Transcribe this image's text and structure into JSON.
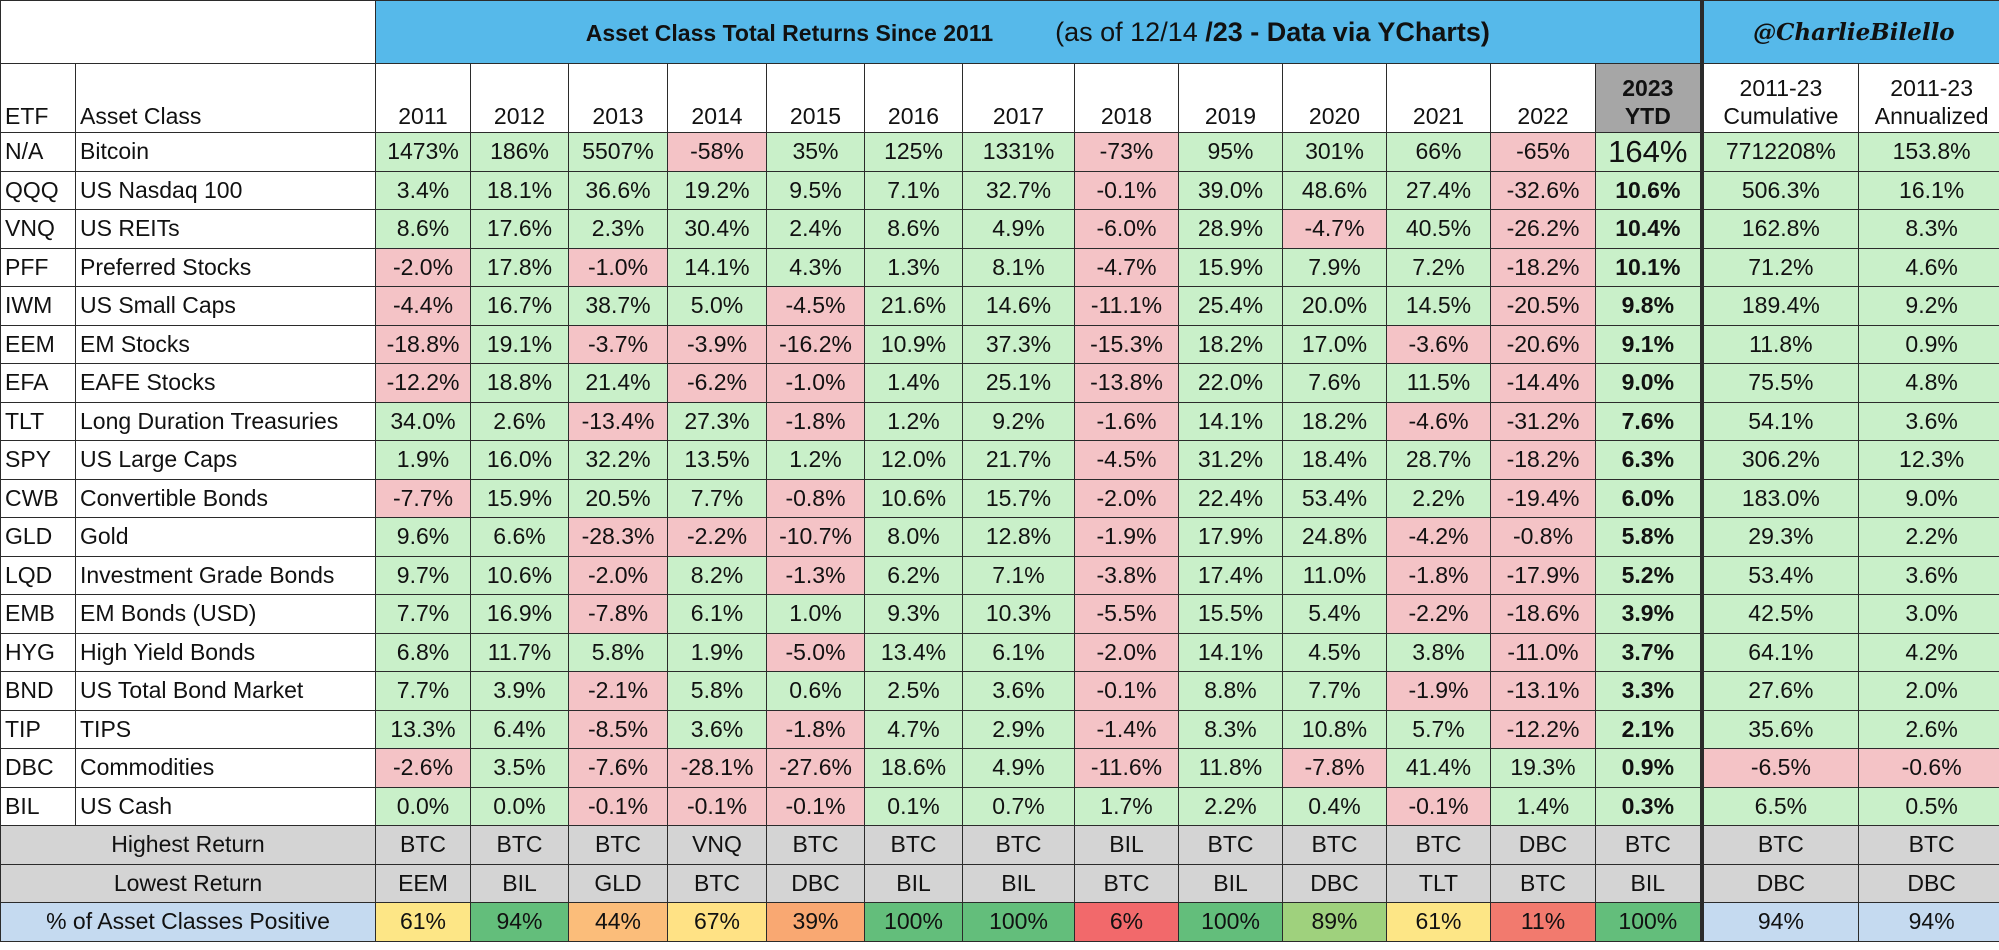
{
  "title": "Asset Class Total Returns Since 2011",
  "subtitle_pre": "(as of 12/14 ",
  "subtitle_bold": "/23 - Data via YCharts)",
  "subtitle": "(as of 12/14 /23 - Data via YCharts)",
  "handle": "@CharlieBilello",
  "headers": {
    "etf": "ETF",
    "asset_class": "Asset Class",
    "years": [
      "2011",
      "2012",
      "2013",
      "2014",
      "2015",
      "2016",
      "2017",
      "2018",
      "2019",
      "2020",
      "2021",
      "2022"
    ],
    "ytd_line1": "2023",
    "ytd_line2": "YTD",
    "cumulative_line1": "2011-23",
    "cumulative_line2": "Cumulative",
    "annualized_line1": "2011-23",
    "annualized_line2": "Annualized"
  },
  "colors": {
    "title_bg": "#56b9ea",
    "positive": "#c9f0c9",
    "negative": "#f4c3c6",
    "ytd_header": "#a6a6a6",
    "summary_gray": "#d4d4d4",
    "summary_blue": "#c5daf0"
  },
  "rows": [
    {
      "etf": "N/A",
      "asset": "Bitcoin",
      "values": [
        "1473%",
        "186%",
        "5507%",
        "-58%",
        "35%",
        "125%",
        "1331%",
        "-73%",
        "95%",
        "301%",
        "66%",
        "-65%"
      ],
      "ytd": "164%",
      "cumulative": "7712208%",
      "annualized": "153.8%"
    },
    {
      "etf": "QQQ",
      "asset": "US Nasdaq 100",
      "values": [
        "3.4%",
        "18.1%",
        "36.6%",
        "19.2%",
        "9.5%",
        "7.1%",
        "32.7%",
        "-0.1%",
        "39.0%",
        "48.6%",
        "27.4%",
        "-32.6%"
      ],
      "ytd": "10.6%",
      "cumulative": "506.3%",
      "annualized": "16.1%"
    },
    {
      "etf": "VNQ",
      "asset": "US REITs",
      "values": [
        "8.6%",
        "17.6%",
        "2.3%",
        "30.4%",
        "2.4%",
        "8.6%",
        "4.9%",
        "-6.0%",
        "28.9%",
        "-4.7%",
        "40.5%",
        "-26.2%"
      ],
      "ytd": "10.4%",
      "cumulative": "162.8%",
      "annualized": "8.3%"
    },
    {
      "etf": "PFF",
      "asset": "Preferred Stocks",
      "values": [
        "-2.0%",
        "17.8%",
        "-1.0%",
        "14.1%",
        "4.3%",
        "1.3%",
        "8.1%",
        "-4.7%",
        "15.9%",
        "7.9%",
        "7.2%",
        "-18.2%"
      ],
      "ytd": "10.1%",
      "cumulative": "71.2%",
      "annualized": "4.6%"
    },
    {
      "etf": "IWM",
      "asset": "US Small Caps",
      "values": [
        "-4.4%",
        "16.7%",
        "38.7%",
        "5.0%",
        "-4.5%",
        "21.6%",
        "14.6%",
        "-11.1%",
        "25.4%",
        "20.0%",
        "14.5%",
        "-20.5%"
      ],
      "ytd": "9.8%",
      "cumulative": "189.4%",
      "annualized": "9.2%"
    },
    {
      "etf": "EEM",
      "asset": "EM Stocks",
      "values": [
        "-18.8%",
        "19.1%",
        "-3.7%",
        "-3.9%",
        "-16.2%",
        "10.9%",
        "37.3%",
        "-15.3%",
        "18.2%",
        "17.0%",
        "-3.6%",
        "-20.6%"
      ],
      "ytd": "9.1%",
      "cumulative": "11.8%",
      "annualized": "0.9%"
    },
    {
      "etf": "EFA",
      "asset": "EAFE Stocks",
      "values": [
        "-12.2%",
        "18.8%",
        "21.4%",
        "-6.2%",
        "-1.0%",
        "1.4%",
        "25.1%",
        "-13.8%",
        "22.0%",
        "7.6%",
        "11.5%",
        "-14.4%"
      ],
      "ytd": "9.0%",
      "cumulative": "75.5%",
      "annualized": "4.8%"
    },
    {
      "etf": "TLT",
      "asset": "Long Duration Treasuries",
      "values": [
        "34.0%",
        "2.6%",
        "-13.4%",
        "27.3%",
        "-1.8%",
        "1.2%",
        "9.2%",
        "-1.6%",
        "14.1%",
        "18.2%",
        "-4.6%",
        "-31.2%"
      ],
      "ytd": "7.6%",
      "cumulative": "54.1%",
      "annualized": "3.6%"
    },
    {
      "etf": "SPY",
      "asset": "US Large Caps",
      "values": [
        "1.9%",
        "16.0%",
        "32.2%",
        "13.5%",
        "1.2%",
        "12.0%",
        "21.7%",
        "-4.5%",
        "31.2%",
        "18.4%",
        "28.7%",
        "-18.2%"
      ],
      "ytd": "6.3%",
      "cumulative": "306.2%",
      "annualized": "12.3%"
    },
    {
      "etf": "CWB",
      "asset": "Convertible Bonds",
      "values": [
        "-7.7%",
        "15.9%",
        "20.5%",
        "7.7%",
        "-0.8%",
        "10.6%",
        "15.7%",
        "-2.0%",
        "22.4%",
        "53.4%",
        "2.2%",
        "-19.4%"
      ],
      "ytd": "6.0%",
      "cumulative": "183.0%",
      "annualized": "9.0%"
    },
    {
      "etf": "GLD",
      "asset": "Gold",
      "values": [
        "9.6%",
        "6.6%",
        "-28.3%",
        "-2.2%",
        "-10.7%",
        "8.0%",
        "12.8%",
        "-1.9%",
        "17.9%",
        "24.8%",
        "-4.2%",
        "-0.8%"
      ],
      "ytd": "5.8%",
      "cumulative": "29.3%",
      "annualized": "2.2%"
    },
    {
      "etf": "LQD",
      "asset": "Investment Grade Bonds",
      "values": [
        "9.7%",
        "10.6%",
        "-2.0%",
        "8.2%",
        "-1.3%",
        "6.2%",
        "7.1%",
        "-3.8%",
        "17.4%",
        "11.0%",
        "-1.8%",
        "-17.9%"
      ],
      "ytd": "5.2%",
      "cumulative": "53.4%",
      "annualized": "3.6%"
    },
    {
      "etf": "EMB",
      "asset": "EM Bonds (USD)",
      "values": [
        "7.7%",
        "16.9%",
        "-7.8%",
        "6.1%",
        "1.0%",
        "9.3%",
        "10.3%",
        "-5.5%",
        "15.5%",
        "5.4%",
        "-2.2%",
        "-18.6%"
      ],
      "ytd": "3.9%",
      "cumulative": "42.5%",
      "annualized": "3.0%"
    },
    {
      "etf": "HYG",
      "asset": "High Yield Bonds",
      "values": [
        "6.8%",
        "11.7%",
        "5.8%",
        "1.9%",
        "-5.0%",
        "13.4%",
        "6.1%",
        "-2.0%",
        "14.1%",
        "4.5%",
        "3.8%",
        "-11.0%"
      ],
      "ytd": "3.7%",
      "cumulative": "64.1%",
      "annualized": "4.2%"
    },
    {
      "etf": "BND",
      "asset": "US Total Bond Market",
      "values": [
        "7.7%",
        "3.9%",
        "-2.1%",
        "5.8%",
        "0.6%",
        "2.5%",
        "3.6%",
        "-0.1%",
        "8.8%",
        "7.7%",
        "-1.9%",
        "-13.1%"
      ],
      "ytd": "3.3%",
      "cumulative": "27.6%",
      "annualized": "2.0%"
    },
    {
      "etf": "TIP",
      "asset": "TIPS",
      "values": [
        "13.3%",
        "6.4%",
        "-8.5%",
        "3.6%",
        "-1.8%",
        "4.7%",
        "2.9%",
        "-1.4%",
        "8.3%",
        "10.8%",
        "5.7%",
        "-12.2%"
      ],
      "ytd": "2.1%",
      "cumulative": "35.6%",
      "annualized": "2.6%"
    },
    {
      "etf": "DBC",
      "asset": "Commodities",
      "values": [
        "-2.6%",
        "3.5%",
        "-7.6%",
        "-28.1%",
        "-27.6%",
        "18.6%",
        "4.9%",
        "-11.6%",
        "11.8%",
        "-7.8%",
        "41.4%",
        "19.3%"
      ],
      "ytd": "0.9%",
      "cumulative": "-6.5%",
      "annualized": "-0.6%"
    },
    {
      "etf": "BIL",
      "asset": "US Cash",
      "values": [
        "0.0%",
        "0.0%",
        "-0.1%",
        "-0.1%",
        "-0.1%",
        "0.1%",
        "0.7%",
        "1.7%",
        "2.2%",
        "0.4%",
        "-0.1%",
        "1.4%"
      ],
      "ytd": "0.3%",
      "cumulative": "6.5%",
      "annualized": "0.5%"
    }
  ],
  "summary": {
    "highest_label": "Highest Return",
    "highest": [
      "BTC",
      "BTC",
      "BTC",
      "VNQ",
      "BTC",
      "BTC",
      "BTC",
      "BIL",
      "BTC",
      "BTC",
      "BTC",
      "DBC",
      "BTC",
      "BTC",
      "BTC"
    ],
    "lowest_label": "Lowest Return",
    "lowest": [
      "EEM",
      "BIL",
      "GLD",
      "BTC",
      "DBC",
      "BIL",
      "BIL",
      "BTC",
      "BIL",
      "DBC",
      "TLT",
      "BTC",
      "BIL",
      "DBC",
      "DBC"
    ],
    "positive_label": "% of Asset Classes Positive",
    "positive": [
      "61%",
      "94%",
      "44%",
      "67%",
      "39%",
      "100%",
      "100%",
      "6%",
      "100%",
      "89%",
      "61%",
      "11%",
      "100%",
      "94%",
      "94%"
    ],
    "positive_values": [
      61,
      94,
      44,
      67,
      39,
      100,
      100,
      6,
      100,
      89,
      61,
      11,
      100,
      94,
      94
    ]
  },
  "chart_data": {
    "type": "table",
    "title": "Asset Class Total Returns Since 2011",
    "subtitle": "(as of 12/14 /23 - Data via YCharts)",
    "columns": [
      "ETF",
      "Asset Class",
      "2011",
      "2012",
      "2013",
      "2014",
      "2015",
      "2016",
      "2017",
      "2018",
      "2019",
      "2020",
      "2021",
      "2022",
      "2023 YTD",
      "2011-23 Cumulative",
      "2011-23 Annualized"
    ],
    "series_names": [
      "Bitcoin",
      "US Nasdaq 100",
      "US REITs",
      "Preferred Stocks",
      "US Small Caps",
      "EM Stocks",
      "EAFE Stocks",
      "Long Duration Treasuries",
      "US Large Caps",
      "Convertible Bonds",
      "Gold",
      "Investment Grade Bonds",
      "EM Bonds (USD)",
      "High Yield Bonds",
      "US Total Bond Market",
      "TIPS",
      "Commodities",
      "US Cash"
    ],
    "units": "percent total return"
  }
}
